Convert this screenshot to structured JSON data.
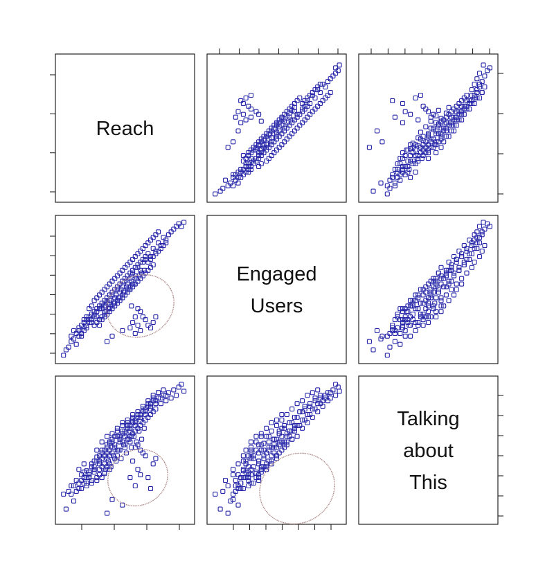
{
  "chart_data": {
    "type": "scatter",
    "kind": "scatterplot-matrix",
    "variables": [
      {
        "id": "reach",
        "label_lines": [
          "Reach"
        ]
      },
      {
        "id": "engaged",
        "label_lines": [
          "Engaged",
          "Users"
        ]
      },
      {
        "id": "talking",
        "label_lines": [
          "Talking",
          "about",
          "This"
        ]
      }
    ],
    "colors": {
      "point": "#2424a8",
      "ellipse": "#b08c8c",
      "frame": "#222222"
    },
    "marker": "open-square",
    "tick_labels_shown": false,
    "grid": false,
    "observations": [
      [
        0.02,
        0.02,
        0.18
      ],
      [
        0.04,
        0.06,
        0.07
      ],
      [
        0.06,
        0.08,
        0.2
      ],
      [
        0.08,
        0.12,
        0.24
      ],
      [
        0.1,
        0.14,
        0.13
      ],
      [
        0.12,
        0.1,
        0.28
      ],
      [
        0.14,
        0.2,
        0.22
      ],
      [
        0.16,
        0.16,
        0.32
      ],
      [
        0.18,
        0.22,
        0.26
      ],
      [
        0.2,
        0.24,
        0.35
      ],
      [
        0.22,
        0.28,
        0.3
      ],
      [
        0.24,
        0.26,
        0.4
      ],
      [
        0.26,
        0.32,
        0.38
      ],
      [
        0.28,
        0.3,
        0.45
      ],
      [
        0.3,
        0.36,
        0.42
      ],
      [
        0.32,
        0.38,
        0.5
      ],
      [
        0.34,
        0.34,
        0.33
      ],
      [
        0.36,
        0.42,
        0.48
      ],
      [
        0.38,
        0.4,
        0.55
      ],
      [
        0.4,
        0.46,
        0.52
      ],
      [
        0.42,
        0.44,
        0.6
      ],
      [
        0.44,
        0.5,
        0.46
      ],
      [
        0.46,
        0.48,
        0.58
      ],
      [
        0.48,
        0.52,
        0.62
      ],
      [
        0.5,
        0.56,
        0.54
      ],
      [
        0.52,
        0.54,
        0.66
      ],
      [
        0.54,
        0.58,
        0.6
      ],
      [
        0.56,
        0.62,
        0.7
      ],
      [
        0.58,
        0.6,
        0.64
      ],
      [
        0.6,
        0.66,
        0.74
      ],
      [
        0.62,
        0.64,
        0.68
      ],
      [
        0.64,
        0.7,
        0.78
      ],
      [
        0.66,
        0.72,
        0.72
      ],
      [
        0.68,
        0.76,
        0.82
      ],
      [
        0.7,
        0.74,
        0.76
      ],
      [
        0.72,
        0.8,
        0.86
      ],
      [
        0.74,
        0.78,
        0.8
      ],
      [
        0.76,
        0.84,
        0.88
      ],
      [
        0.78,
        0.82,
        0.84
      ],
      [
        0.8,
        0.88,
        0.9
      ],
      [
        0.82,
        0.86,
        0.86
      ],
      [
        0.84,
        0.9,
        0.92
      ],
      [
        0.86,
        0.92,
        0.88
      ],
      [
        0.88,
        0.94,
        0.94
      ],
      [
        0.9,
        0.96,
        0.9
      ],
      [
        0.92,
        0.98,
        0.96
      ],
      [
        0.94,
        0.96,
        0.98
      ],
      [
        0.96,
        0.99,
        0.93
      ],
      [
        0.3,
        0.24,
        0.46
      ],
      [
        0.32,
        0.28,
        0.38
      ],
      [
        0.34,
        0.3,
        0.5
      ],
      [
        0.36,
        0.32,
        0.44
      ],
      [
        0.38,
        0.34,
        0.56
      ],
      [
        0.4,
        0.36,
        0.48
      ],
      [
        0.42,
        0.38,
        0.54
      ],
      [
        0.44,
        0.4,
        0.5
      ],
      [
        0.46,
        0.42,
        0.6
      ],
      [
        0.48,
        0.44,
        0.56
      ],
      [
        0.5,
        0.46,
        0.64
      ],
      [
        0.52,
        0.48,
        0.58
      ],
      [
        0.54,
        0.5,
        0.68
      ],
      [
        0.56,
        0.52,
        0.62
      ],
      [
        0.58,
        0.54,
        0.72
      ],
      [
        0.6,
        0.56,
        0.66
      ],
      [
        0.62,
        0.58,
        0.76
      ],
      [
        0.64,
        0.6,
        0.7
      ],
      [
        0.66,
        0.62,
        0.8
      ],
      [
        0.68,
        0.64,
        0.74
      ],
      [
        0.7,
        0.66,
        0.84
      ],
      [
        0.72,
        0.68,
        0.78
      ],
      [
        0.28,
        0.34,
        0.3
      ],
      [
        0.26,
        0.3,
        0.36
      ],
      [
        0.24,
        0.28,
        0.28
      ],
      [
        0.22,
        0.26,
        0.34
      ],
      [
        0.2,
        0.22,
        0.3
      ],
      [
        0.18,
        0.2,
        0.4
      ],
      [
        0.16,
        0.18,
        0.28
      ],
      [
        0.14,
        0.16,
        0.36
      ],
      [
        0.32,
        0.4,
        0.44
      ],
      [
        0.34,
        0.42,
        0.4
      ],
      [
        0.36,
        0.44,
        0.52
      ],
      [
        0.38,
        0.46,
        0.46
      ],
      [
        0.4,
        0.48,
        0.58
      ],
      [
        0.42,
        0.5,
        0.52
      ],
      [
        0.44,
        0.52,
        0.64
      ],
      [
        0.46,
        0.54,
        0.56
      ],
      [
        0.48,
        0.56,
        0.68
      ],
      [
        0.5,
        0.58,
        0.62
      ],
      [
        0.52,
        0.6,
        0.7
      ],
      [
        0.54,
        0.62,
        0.64
      ],
      [
        0.56,
        0.64,
        0.74
      ],
      [
        0.58,
        0.66,
        0.68
      ],
      [
        0.6,
        0.68,
        0.78
      ],
      [
        0.62,
        0.7,
        0.72
      ],
      [
        0.64,
        0.72,
        0.82
      ],
      [
        0.66,
        0.74,
        0.76
      ],
      [
        0.68,
        0.7,
        0.86
      ],
      [
        0.7,
        0.72,
        0.8
      ],
      [
        0.72,
        0.74,
        0.9
      ],
      [
        0.74,
        0.76,
        0.84
      ],
      [
        0.76,
        0.78,
        0.92
      ],
      [
        0.78,
        0.8,
        0.88
      ],
      [
        0.8,
        0.82,
        0.94
      ],
      [
        0.82,
        0.84,
        0.9
      ],
      [
        0.26,
        0.24,
        0.42
      ],
      [
        0.28,
        0.26,
        0.5
      ],
      [
        0.3,
        0.28,
        0.32
      ],
      [
        0.32,
        0.3,
        0.56
      ],
      [
        0.34,
        0.32,
        0.46
      ],
      [
        0.36,
        0.34,
        0.6
      ],
      [
        0.38,
        0.36,
        0.4
      ],
      [
        0.4,
        0.38,
        0.62
      ],
      [
        0.42,
        0.4,
        0.44
      ],
      [
        0.44,
        0.42,
        0.66
      ],
      [
        0.46,
        0.44,
        0.5
      ],
      [
        0.48,
        0.46,
        0.7
      ],
      [
        0.5,
        0.48,
        0.52
      ],
      [
        0.52,
        0.5,
        0.72
      ],
      [
        0.54,
        0.52,
        0.56
      ],
      [
        0.56,
        0.54,
        0.76
      ],
      [
        0.35,
        0.38,
        0.36
      ],
      [
        0.37,
        0.36,
        0.42
      ],
      [
        0.39,
        0.42,
        0.38
      ],
      [
        0.41,
        0.4,
        0.46
      ],
      [
        0.43,
        0.46,
        0.42
      ],
      [
        0.45,
        0.44,
        0.5
      ],
      [
        0.47,
        0.5,
        0.44
      ],
      [
        0.49,
        0.48,
        0.54
      ],
      [
        0.51,
        0.52,
        0.48
      ],
      [
        0.53,
        0.5,
        0.58
      ],
      [
        0.55,
        0.56,
        0.52
      ],
      [
        0.57,
        0.54,
        0.6
      ],
      [
        0.59,
        0.58,
        0.56
      ],
      [
        0.61,
        0.6,
        0.64
      ],
      [
        0.63,
        0.62,
        0.58
      ],
      [
        0.65,
        0.64,
        0.66
      ],
      [
        0.55,
        0.38,
        0.6
      ],
      [
        0.6,
        0.36,
        0.54
      ],
      [
        0.62,
        0.34,
        0.5
      ],
      [
        0.64,
        0.3,
        0.48
      ],
      [
        0.66,
        0.28,
        0.46
      ],
      [
        0.58,
        0.3,
        0.52
      ],
      [
        0.56,
        0.26,
        0.42
      ],
      [
        0.6,
        0.24,
        0.36
      ],
      [
        0.72,
        0.26,
        0.4
      ],
      [
        0.74,
        0.3,
        0.44
      ],
      [
        0.62,
        0.2,
        0.32
      ],
      [
        0.54,
        0.22,
        0.3
      ],
      [
        0.58,
        0.18,
        0.24
      ],
      [
        0.7,
        0.22,
        0.22
      ],
      [
        0.48,
        0.2,
        0.1
      ],
      [
        0.36,
        0.12,
        0.04
      ],
      [
        0.4,
        0.16,
        0.14
      ],
      [
        0.68,
        0.24,
        0.3
      ],
      [
        0.2,
        0.3,
        0.26
      ],
      [
        0.22,
        0.36,
        0.32
      ],
      [
        0.18,
        0.28,
        0.34
      ],
      [
        0.24,
        0.38,
        0.38
      ],
      [
        0.26,
        0.42,
        0.36
      ],
      [
        0.28,
        0.44,
        0.42
      ],
      [
        0.3,
        0.46,
        0.4
      ],
      [
        0.32,
        0.48,
        0.48
      ],
      [
        0.34,
        0.5,
        0.46
      ],
      [
        0.36,
        0.52,
        0.54
      ],
      [
        0.38,
        0.54,
        0.5
      ],
      [
        0.4,
        0.56,
        0.56
      ],
      [
        0.42,
        0.58,
        0.54
      ],
      [
        0.44,
        0.6,
        0.6
      ],
      [
        0.46,
        0.62,
        0.58
      ],
      [
        0.48,
        0.64,
        0.64
      ],
      [
        0.5,
        0.66,
        0.6
      ],
      [
        0.52,
        0.68,
        0.68
      ],
      [
        0.54,
        0.7,
        0.66
      ],
      [
        0.56,
        0.72,
        0.72
      ],
      [
        0.58,
        0.74,
        0.7
      ],
      [
        0.6,
        0.76,
        0.76
      ],
      [
        0.62,
        0.78,
        0.74
      ],
      [
        0.64,
        0.8,
        0.8
      ],
      [
        0.66,
        0.82,
        0.78
      ],
      [
        0.68,
        0.84,
        0.84
      ],
      [
        0.7,
        0.86,
        0.82
      ],
      [
        0.72,
        0.88,
        0.88
      ],
      [
        0.74,
        0.9,
        0.86
      ],
      [
        0.76,
        0.92,
        0.92
      ],
      [
        0.12,
        0.18,
        0.2
      ],
      [
        0.1,
        0.2,
        0.24
      ],
      [
        0.08,
        0.16,
        0.18
      ],
      [
        0.14,
        0.22,
        0.26
      ],
      [
        0.16,
        0.24,
        0.22
      ],
      [
        0.18,
        0.26,
        0.3
      ],
      [
        0.2,
        0.28,
        0.24
      ],
      [
        0.22,
        0.3,
        0.32
      ],
      [
        0.24,
        0.32,
        0.26
      ],
      [
        0.26,
        0.34,
        0.34
      ],
      [
        0.28,
        0.36,
        0.28
      ],
      [
        0.3,
        0.38,
        0.36
      ],
      [
        0.32,
        0.36,
        0.3
      ],
      [
        0.34,
        0.38,
        0.34
      ],
      [
        0.36,
        0.4,
        0.38
      ],
      [
        0.38,
        0.42,
        0.36
      ]
    ]
  }
}
